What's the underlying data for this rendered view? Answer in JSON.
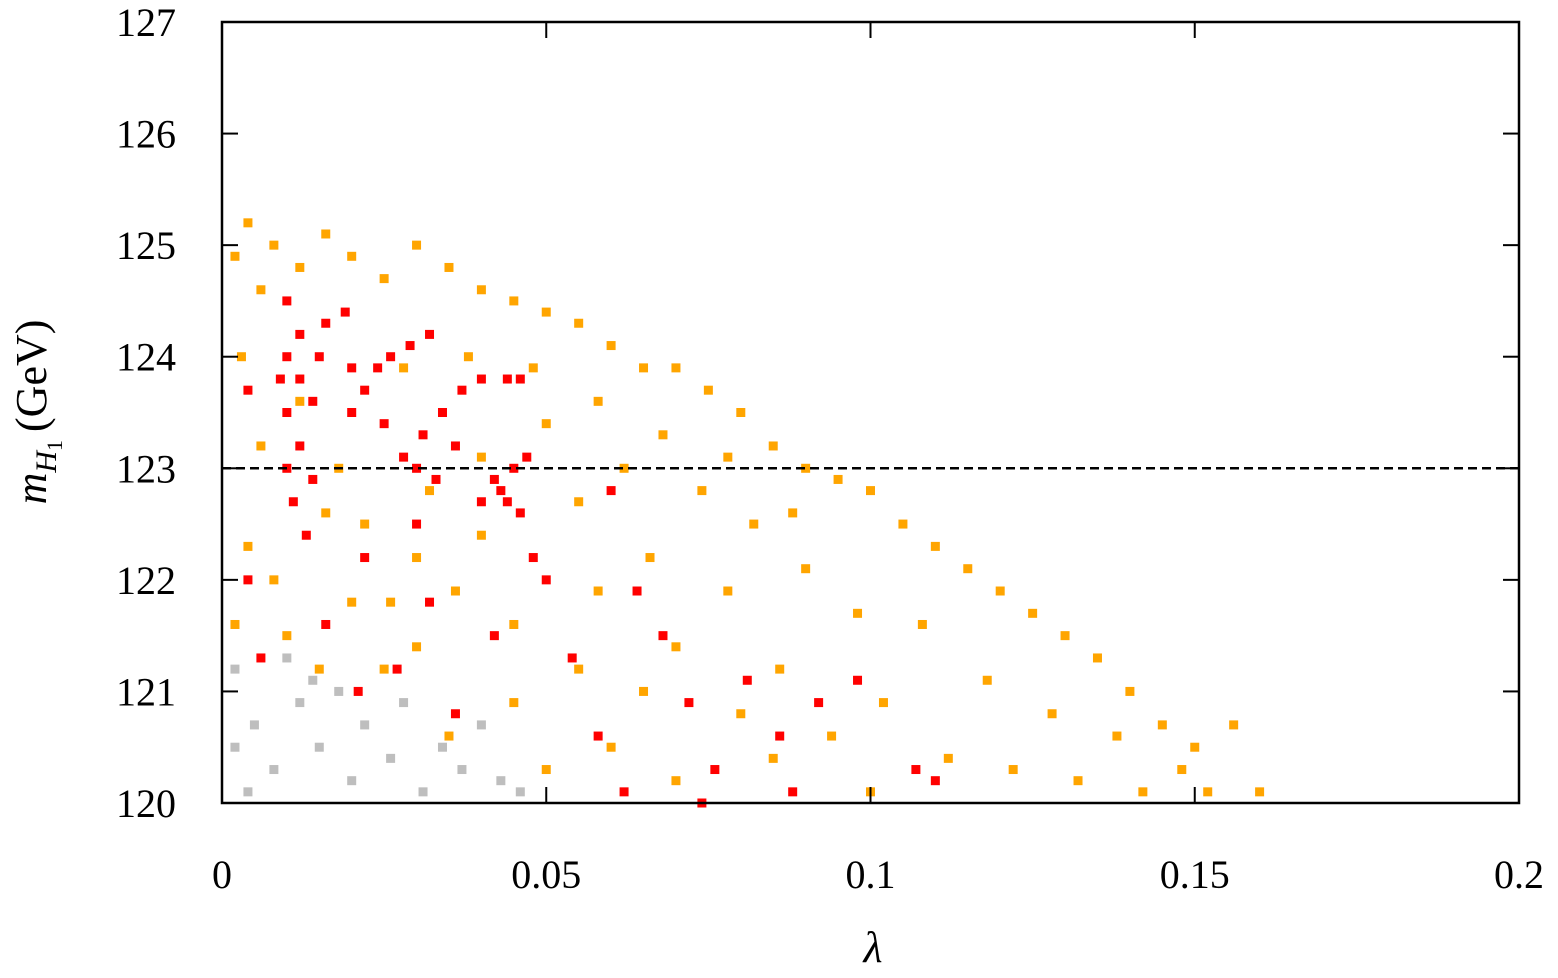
{
  "chart_data": {
    "type": "scatter",
    "xlabel": "λ",
    "ylabel": [
      "m",
      "H",
      "1",
      "(GeV)"
    ],
    "xlim": [
      0,
      0.2
    ],
    "ylim": [
      120,
      127
    ],
    "xticks": [
      0,
      0.05,
      0.1,
      0.15,
      0.2
    ],
    "yticks": [
      120,
      121,
      122,
      123,
      124,
      125,
      126,
      127
    ],
    "reference_line": 123,
    "series": [
      {
        "color": "#bebebe",
        "x": [
          0.002,
          0.005,
          0.008,
          0.004,
          0.012,
          0.015,
          0.018,
          0.02,
          0.022,
          0.026,
          0.028,
          0.031,
          0.034,
          0.037,
          0.04,
          0.043,
          0.046,
          0.01,
          0.014,
          0.002
        ],
        "y": [
          121.2,
          120.7,
          120.3,
          120.1,
          120.9,
          120.5,
          121.0,
          120.2,
          120.7,
          120.4,
          120.9,
          120.1,
          120.5,
          120.3,
          120.7,
          120.2,
          120.1,
          121.3,
          121.1,
          120.5
        ]
      },
      {
        "color": "#ffa500",
        "x": [
          0.002,
          0.004,
          0.008,
          0.012,
          0.016,
          0.02,
          0.025,
          0.03,
          0.035,
          0.04,
          0.045,
          0.05,
          0.055,
          0.06,
          0.065,
          0.07,
          0.075,
          0.08,
          0.085,
          0.09,
          0.095,
          0.1,
          0.105,
          0.11,
          0.115,
          0.12,
          0.125,
          0.13,
          0.135,
          0.14,
          0.145,
          0.15,
          0.156,
          0.16,
          0.003,
          0.006,
          0.004,
          0.002,
          0.008,
          0.018,
          0.022,
          0.026,
          0.032,
          0.036,
          0.04,
          0.045,
          0.05,
          0.055,
          0.058,
          0.062,
          0.066,
          0.07,
          0.074,
          0.078,
          0.082,
          0.086,
          0.09,
          0.094,
          0.098,
          0.102,
          0.108,
          0.112,
          0.118,
          0.122,
          0.128,
          0.132,
          0.138,
          0.142,
          0.148,
          0.152,
          0.06,
          0.07,
          0.08,
          0.05,
          0.045,
          0.055,
          0.065,
          0.085,
          0.1,
          0.03,
          0.02,
          0.015,
          0.01,
          0.035,
          0.025,
          0.012,
          0.028,
          0.038,
          0.048,
          0.058,
          0.068,
          0.078,
          0.088,
          0.04,
          0.03,
          0.016,
          0.006
        ],
        "y": [
          124.9,
          125.2,
          125.0,
          124.8,
          125.1,
          124.9,
          124.7,
          125.0,
          124.8,
          124.6,
          124.5,
          124.4,
          124.3,
          124.1,
          123.9,
          123.9,
          123.7,
          123.5,
          123.2,
          123.0,
          122.9,
          122.8,
          122.5,
          122.3,
          122.1,
          121.9,
          121.7,
          121.5,
          121.3,
          121.0,
          120.7,
          120.5,
          120.7,
          120.1,
          124.0,
          123.2,
          122.3,
          121.6,
          122.0,
          123.0,
          122.5,
          121.8,
          122.8,
          121.9,
          122.4,
          121.6,
          123.4,
          122.7,
          121.9,
          123.0,
          122.2,
          121.4,
          122.8,
          121.9,
          122.5,
          121.2,
          122.1,
          120.6,
          121.7,
          120.9,
          121.6,
          120.4,
          121.1,
          120.3,
          120.8,
          120.2,
          120.6,
          120.1,
          120.3,
          120.1,
          120.5,
          120.2,
          120.8,
          120.3,
          120.9,
          121.2,
          121.0,
          120.4,
          120.1,
          121.4,
          121.8,
          121.2,
          121.5,
          120.6,
          121.2,
          123.6,
          123.9,
          124.0,
          123.9,
          123.6,
          123.3,
          123.1,
          122.6,
          123.1,
          122.2,
          122.6,
          124.6
        ]
      },
      {
        "color": "#ff0000",
        "x": [
          0.01,
          0.01,
          0.01,
          0.01,
          0.011,
          0.013,
          0.012,
          0.012,
          0.012,
          0.014,
          0.014,
          0.009,
          0.016,
          0.019,
          0.015,
          0.02,
          0.022,
          0.024,
          0.026,
          0.029,
          0.032,
          0.025,
          0.02,
          0.028,
          0.031,
          0.034,
          0.037,
          0.04,
          0.044,
          0.046,
          0.033,
          0.036,
          0.03,
          0.04,
          0.043,
          0.045,
          0.047,
          0.046,
          0.042,
          0.044,
          0.004,
          0.006,
          0.016,
          0.021,
          0.027,
          0.032,
          0.036,
          0.042,
          0.05,
          0.054,
          0.058,
          0.064,
          0.068,
          0.072,
          0.076,
          0.081,
          0.086,
          0.092,
          0.098,
          0.107,
          0.11,
          0.088,
          0.074,
          0.062,
          0.06,
          0.048,
          0.03,
          0.022,
          0.004
        ],
        "y": [
          124.5,
          124.0,
          123.5,
          123.0,
          122.7,
          122.4,
          124.2,
          123.8,
          123.2,
          122.9,
          123.6,
          123.8,
          124.3,
          124.4,
          124.0,
          123.9,
          123.7,
          123.9,
          124.0,
          124.1,
          124.2,
          123.4,
          123.5,
          123.1,
          123.3,
          123.5,
          123.7,
          123.8,
          123.8,
          123.8,
          122.9,
          123.2,
          123.0,
          122.7,
          122.8,
          123.0,
          123.1,
          122.6,
          122.9,
          122.7,
          122.0,
          121.3,
          121.6,
          121.0,
          121.2,
          121.8,
          120.8,
          121.5,
          122.0,
          121.3,
          120.6,
          121.9,
          121.5,
          120.9,
          120.3,
          121.1,
          120.6,
          120.9,
          121.1,
          120.3,
          120.2,
          120.1,
          120.0,
          120.1,
          122.8,
          122.2,
          122.5,
          122.2,
          123.7
        ]
      }
    ]
  }
}
